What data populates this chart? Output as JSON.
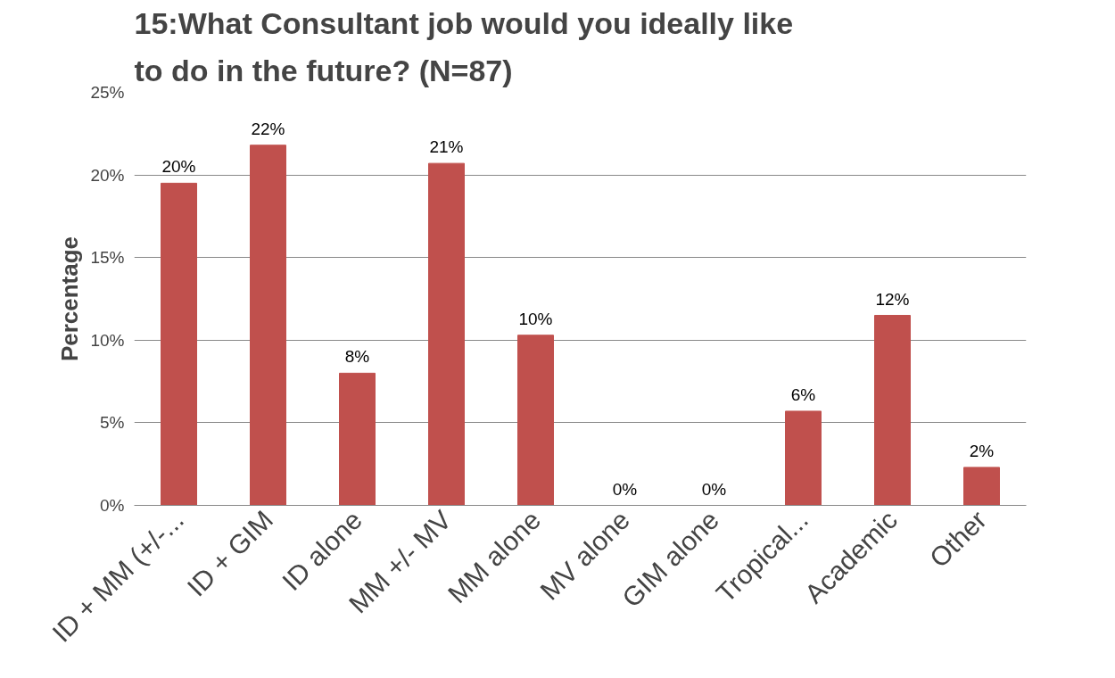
{
  "chart_data": {
    "type": "bar",
    "title": "15:What Consultant job would you ideally like to do in the future? (N=87)",
    "ylabel": "Percentage",
    "categories": [
      "ID + MM (+/-...",
      "ID + GIM",
      "ID alone",
      "MM +/- MV",
      "MM alone",
      "MV alone",
      "GIM alone",
      "Tropical...",
      "Academic",
      "Other"
    ],
    "values": [
      19.5,
      21.8,
      8.0,
      20.7,
      10.3,
      0,
      0,
      5.7,
      11.5,
      2.3
    ],
    "value_labels": [
      "20%",
      "22%",
      "8%",
      "21%",
      "10%",
      "0%",
      "0%",
      "6%",
      "12%",
      "2%"
    ],
    "color": "#c0504d",
    "ylim": [
      0,
      25
    ],
    "yticks": [
      {
        "value": 0,
        "label": "0%"
      },
      {
        "value": 5,
        "label": "5%"
      },
      {
        "value": 10,
        "label": "10%"
      },
      {
        "value": 15,
        "label": "15%"
      },
      {
        "value": 20,
        "label": "20%"
      },
      {
        "value": 25,
        "label": "25%"
      }
    ],
    "grid": "y"
  }
}
